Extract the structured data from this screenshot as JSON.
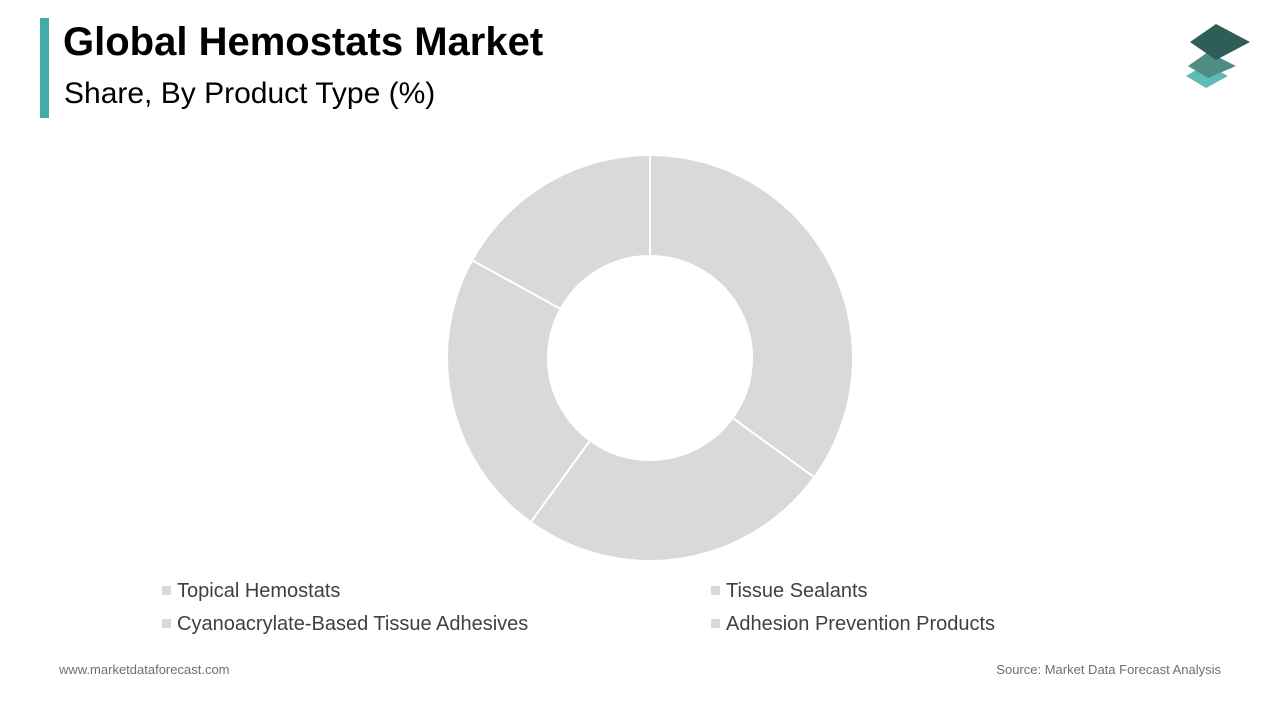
{
  "header": {
    "title": "Global Hemostats Market",
    "subtitle": "Share, By Product Type (%)"
  },
  "brand": {
    "accent_color": "#44ABAA",
    "logo_icon": "stacked-layers-icon",
    "logo_colors": [
      "#2F5D57",
      "#4E8C86",
      "#5DBDB6"
    ]
  },
  "chart_data": {
    "type": "pie",
    "donut": true,
    "slice_color": "#D9D9D9",
    "separator_color": "#FFFFFF",
    "categories": [
      "Topical Hemostats",
      "Tissue Sealants",
      "Cyanoacrylate-Based Tissue Adhesives",
      "Adhesion Prevention Products"
    ],
    "values": [
      35,
      25,
      23,
      17
    ],
    "legend_position": "bottom",
    "data_labels": false
  },
  "footer": {
    "website": "www.marketdataforecast.com",
    "source": "Source: Market Data Forecast Analysis"
  }
}
